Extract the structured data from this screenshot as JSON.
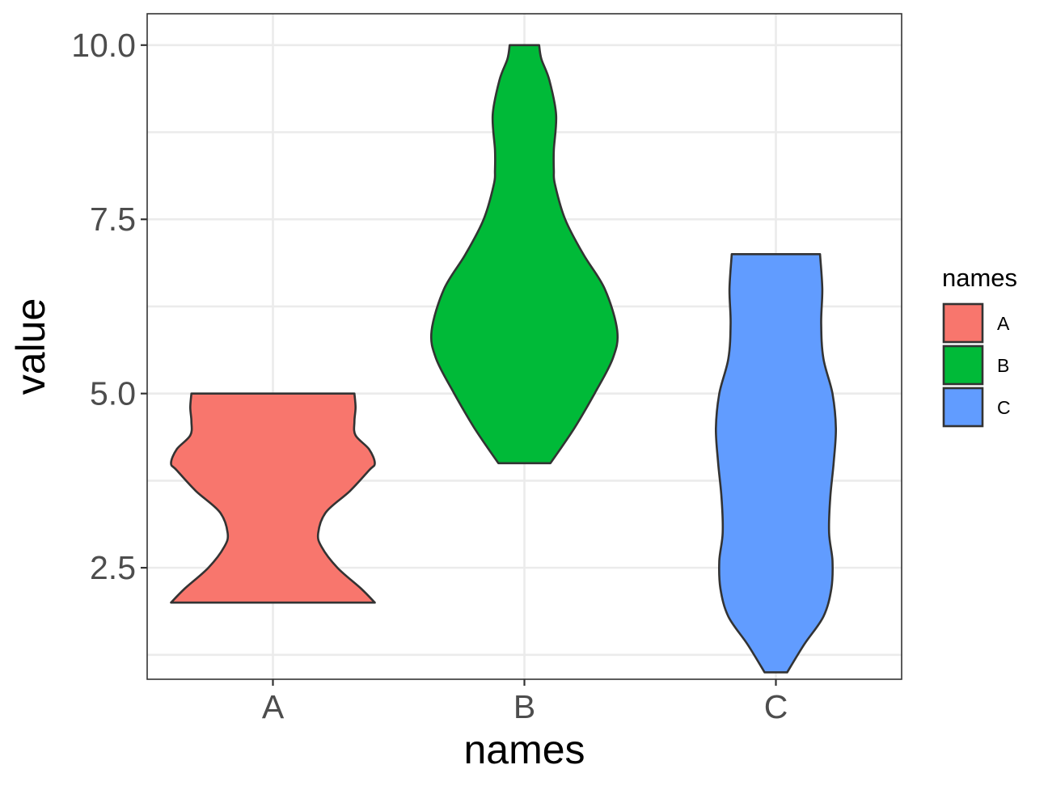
{
  "chart_data": {
    "type": "violin",
    "xlabel": "names",
    "ylabel": "value",
    "categories": [
      "A",
      "B",
      "C"
    ],
    "ylim": [
      0.9,
      10.45
    ],
    "y_ticks": [
      2.5,
      5.0,
      7.5,
      10.0
    ],
    "y_tick_labels": [
      "2.5",
      "5.0",
      "7.5",
      "10.0"
    ],
    "grid": true,
    "legend": {
      "title": "names",
      "placement": "right",
      "entries": [
        "A",
        "B",
        "C"
      ]
    },
    "series": [
      {
        "name": "A",
        "color": "#F8766D",
        "min": 2.0,
        "max": 5.0,
        "density": [
          [
            2.0,
            0.9
          ],
          [
            2.2,
            0.78
          ],
          [
            2.5,
            0.57
          ],
          [
            2.8,
            0.43
          ],
          [
            3.0,
            0.4
          ],
          [
            3.3,
            0.47
          ],
          [
            3.6,
            0.68
          ],
          [
            3.9,
            0.85
          ],
          [
            4.0,
            0.9
          ],
          [
            4.2,
            0.85
          ],
          [
            4.4,
            0.73
          ],
          [
            4.6,
            0.72
          ],
          [
            4.8,
            0.73
          ],
          [
            5.0,
            0.72
          ]
        ]
      },
      {
        "name": "B",
        "color": "#00BA38",
        "min": 4.0,
        "max": 10.0,
        "density": [
          [
            4.0,
            0.23
          ],
          [
            4.5,
            0.44
          ],
          [
            5.0,
            0.62
          ],
          [
            5.5,
            0.78
          ],
          [
            5.9,
            0.82
          ],
          [
            6.5,
            0.71
          ],
          [
            7.0,
            0.52
          ],
          [
            7.5,
            0.36
          ],
          [
            8.0,
            0.27
          ],
          [
            8.2,
            0.26
          ],
          [
            8.5,
            0.26
          ],
          [
            9.0,
            0.28
          ],
          [
            9.5,
            0.22
          ],
          [
            9.8,
            0.15
          ],
          [
            10.0,
            0.13
          ]
        ]
      },
      {
        "name": "C",
        "color": "#619CFF",
        "min": 1.0,
        "max": 7.0,
        "density": [
          [
            1.0,
            0.1
          ],
          [
            1.4,
            0.25
          ],
          [
            1.8,
            0.42
          ],
          [
            2.2,
            0.49
          ],
          [
            2.6,
            0.5
          ],
          [
            3.0,
            0.47
          ],
          [
            3.5,
            0.48
          ],
          [
            4.0,
            0.51
          ],
          [
            4.5,
            0.53
          ],
          [
            5.0,
            0.5
          ],
          [
            5.5,
            0.42
          ],
          [
            6.0,
            0.4
          ],
          [
            6.5,
            0.41
          ],
          [
            7.0,
            0.39
          ]
        ]
      }
    ]
  }
}
